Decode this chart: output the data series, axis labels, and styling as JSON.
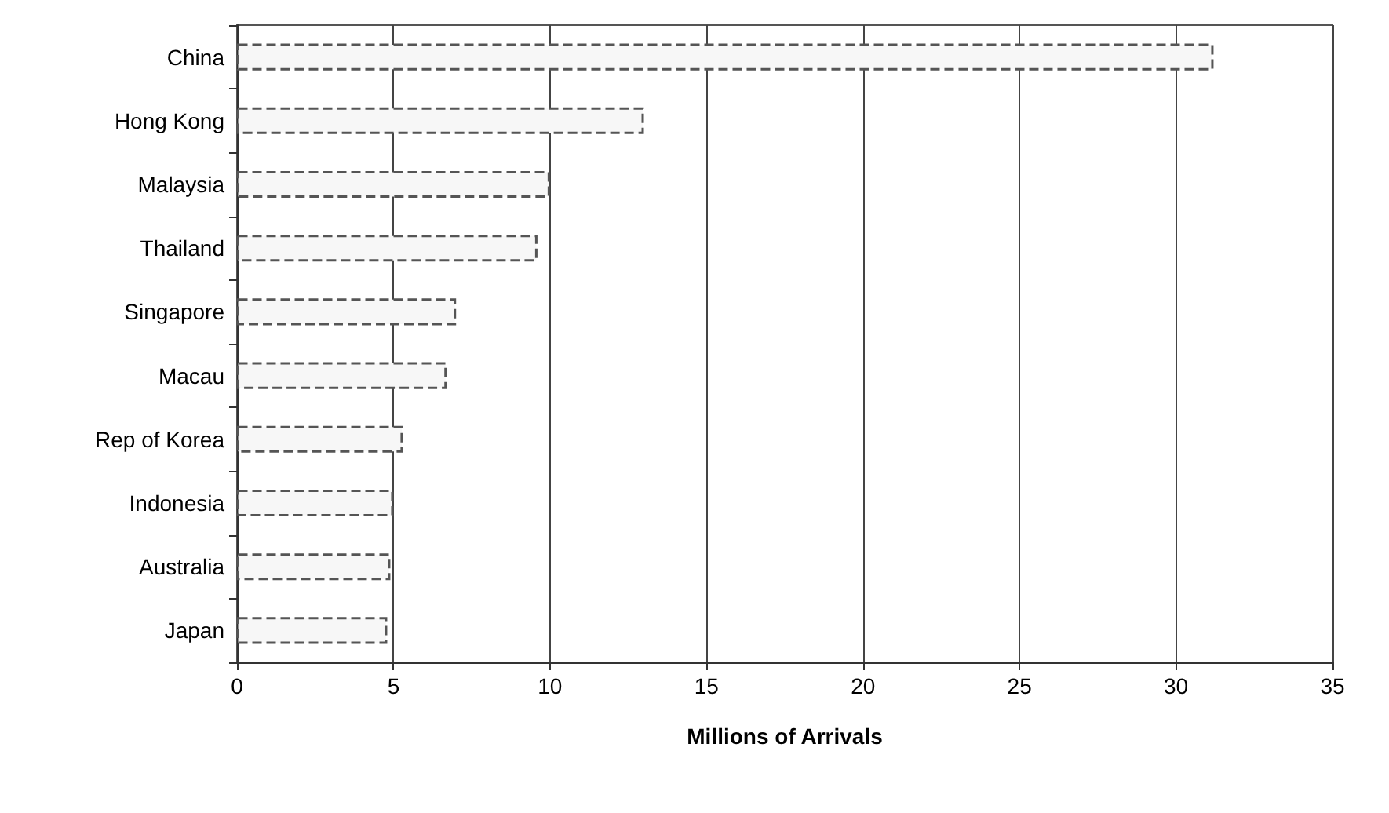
{
  "chart_data": {
    "type": "bar",
    "orientation": "horizontal",
    "xlabel": "Millions of Arrivals",
    "categories": [
      "China",
      "Hong Kong",
      "Malaysia",
      "Thailand",
      "Singapore",
      "Macau",
      "Rep of Korea",
      "Indonesia",
      "Australia",
      "Japan"
    ],
    "values": [
      31.2,
      13.0,
      10.0,
      9.6,
      7.0,
      6.7,
      5.3,
      5.0,
      4.9,
      4.8
    ],
    "color": "#f7f7f7",
    "xlim": [
      0,
      35
    ],
    "xticks": [
      0,
      5,
      10,
      15,
      20,
      25,
      30,
      35
    ],
    "grid": "x"
  }
}
